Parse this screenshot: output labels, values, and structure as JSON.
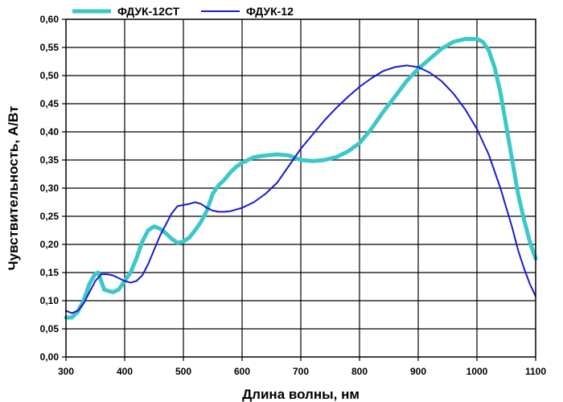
{
  "chart_data": {
    "type": "line",
    "xlabel": "Длина волны, нм",
    "ylabel": "Чувствительность, А/Вт",
    "xlim": [
      300,
      1100
    ],
    "ylim": [
      0,
      0.6
    ],
    "x_ticks": [
      "300",
      "400",
      "500",
      "600",
      "700",
      "800",
      "900",
      "1000",
      "1100"
    ],
    "y_ticks": [
      "0,00",
      "0,05",
      "0,10",
      "0,15",
      "0,20",
      "0,25",
      "0,30",
      "0,35",
      "0,40",
      "0,45",
      "0,50",
      "0,55",
      "0,60"
    ],
    "grid": true,
    "legend_position": "top-left",
    "series": [
      {
        "name": "ФДУК-12СТ",
        "color": "#3cc8c8",
        "x": [
          300,
          310,
          320,
          330,
          340,
          350,
          355,
          360,
          365,
          370,
          380,
          390,
          400,
          410,
          420,
          430,
          440,
          450,
          460,
          470,
          480,
          490,
          500,
          510,
          520,
          530,
          540,
          550,
          560,
          570,
          580,
          590,
          600,
          610,
          620,
          640,
          660,
          680,
          700,
          720,
          740,
          760,
          780,
          800,
          820,
          840,
          860,
          880,
          900,
          920,
          940,
          960,
          980,
          1000,
          1010,
          1020,
          1030,
          1040,
          1050,
          1060,
          1070,
          1080,
          1090,
          1100
        ],
        "y": [
          0.07,
          0.07,
          0.08,
          0.1,
          0.13,
          0.148,
          0.15,
          0.135,
          0.12,
          0.118,
          0.115,
          0.12,
          0.135,
          0.15,
          0.175,
          0.205,
          0.225,
          0.232,
          0.228,
          0.22,
          0.21,
          0.203,
          0.205,
          0.212,
          0.225,
          0.24,
          0.26,
          0.29,
          0.305,
          0.315,
          0.328,
          0.338,
          0.345,
          0.35,
          0.355,
          0.358,
          0.36,
          0.358,
          0.35,
          0.348,
          0.35,
          0.355,
          0.365,
          0.38,
          0.405,
          0.435,
          0.462,
          0.49,
          0.512,
          0.53,
          0.548,
          0.56,
          0.565,
          0.565,
          0.56,
          0.545,
          0.515,
          0.47,
          0.41,
          0.35,
          0.29,
          0.245,
          0.205,
          0.175
        ]
      },
      {
        "name": "ФДУК-12",
        "color": "#1a1ad2",
        "x": [
          300,
          310,
          320,
          330,
          340,
          350,
          360,
          370,
          380,
          390,
          400,
          410,
          420,
          430,
          440,
          450,
          460,
          470,
          480,
          490,
          500,
          510,
          520,
          530,
          540,
          550,
          560,
          570,
          580,
          600,
          620,
          640,
          660,
          680,
          700,
          720,
          740,
          760,
          780,
          800,
          820,
          840,
          860,
          880,
          900,
          920,
          940,
          960,
          980,
          1000,
          1020,
          1040,
          1050,
          1060,
          1070,
          1080,
          1090,
          1100
        ],
        "y": [
          0.082,
          0.078,
          0.082,
          0.095,
          0.115,
          0.135,
          0.147,
          0.147,
          0.145,
          0.14,
          0.135,
          0.132,
          0.135,
          0.145,
          0.165,
          0.19,
          0.215,
          0.235,
          0.255,
          0.268,
          0.27,
          0.272,
          0.275,
          0.272,
          0.265,
          0.26,
          0.258,
          0.258,
          0.259,
          0.265,
          0.275,
          0.29,
          0.31,
          0.34,
          0.37,
          0.395,
          0.42,
          0.442,
          0.462,
          0.48,
          0.495,
          0.508,
          0.515,
          0.518,
          0.515,
          0.505,
          0.49,
          0.468,
          0.44,
          0.405,
          0.36,
          0.3,
          0.265,
          0.23,
          0.19,
          0.158,
          0.13,
          0.108
        ]
      }
    ]
  }
}
